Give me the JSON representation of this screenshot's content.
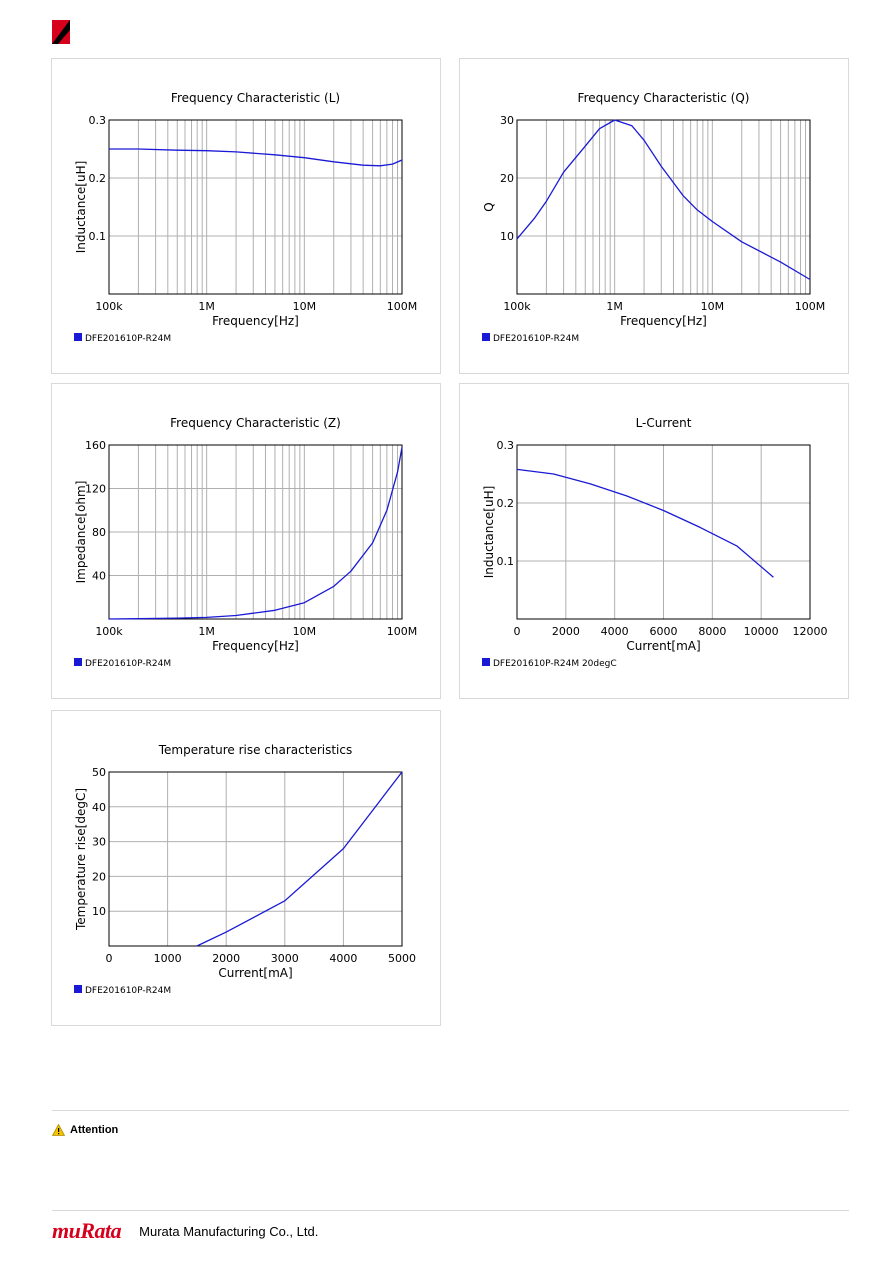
{
  "colors": {
    "line": "#1a1ad6",
    "brand": "#d6001c",
    "grid": "#b0b0b0"
  },
  "chart_data": [
    {
      "id": "chart-l",
      "type": "line",
      "title": "Frequency   Characteristic (L)",
      "xlabel": "Frequency[Hz]",
      "ylabel": "Inductance[uH]",
      "xscale": "log",
      "xlim": [
        100000,
        100000000
      ],
      "ylim": [
        0,
        0.3
      ],
      "xticks": [
        {
          "v": 100000,
          "label": "100k"
        },
        {
          "v": 1000000,
          "label": "1M"
        },
        {
          "v": 10000000,
          "label": "10M"
        },
        {
          "v": 100000000,
          "label": "100M"
        }
      ],
      "yticks": [
        {
          "v": 0.1,
          "label": "0.1"
        },
        {
          "v": 0.2,
          "label": "0.2"
        },
        {
          "v": 0.3,
          "label": "0.3"
        }
      ],
      "legend": "DFE201610P-R24M",
      "series": [
        {
          "name": "DFE201610P-R24M",
          "x": [
            100000,
            200000,
            500000,
            1000000,
            2000000,
            5000000,
            10000000,
            20000000,
            40000000,
            60000000,
            80000000,
            100000000
          ],
          "y": [
            0.25,
            0.25,
            0.248,
            0.247,
            0.245,
            0.24,
            0.235,
            0.228,
            0.222,
            0.221,
            0.224,
            0.231
          ]
        }
      ]
    },
    {
      "id": "chart-q",
      "type": "line",
      "title": "Frequency   Characteristic (Q)",
      "xlabel": "Frequency[Hz]",
      "ylabel": "Q",
      "xscale": "log",
      "xlim": [
        100000,
        100000000
      ],
      "ylim": [
        0,
        30
      ],
      "xticks": [
        {
          "v": 100000,
          "label": "100k"
        },
        {
          "v": 1000000,
          "label": "1M"
        },
        {
          "v": 10000000,
          "label": "10M"
        },
        {
          "v": 100000000,
          "label": "100M"
        }
      ],
      "yticks": [
        {
          "v": 10,
          "label": "10"
        },
        {
          "v": 20,
          "label": "20"
        },
        {
          "v": 30,
          "label": "30"
        }
      ],
      "legend": "DFE201610P-R24M",
      "series": [
        {
          "name": "DFE201610P-R24M",
          "x": [
            100000,
            150000,
            200000,
            300000,
            500000,
            700000,
            1000000,
            1500000,
            2000000,
            3000000,
            5000000,
            7000000,
            10000000,
            20000000,
            50000000,
            100000000
          ],
          "y": [
            9.5,
            13,
            16,
            21,
            25.5,
            28.5,
            30,
            29,
            26.5,
            22,
            17,
            14.5,
            12.5,
            9,
            5.5,
            2.5
          ]
        }
      ]
    },
    {
      "id": "chart-z",
      "type": "line",
      "title": "Frequency   Characteristic (Z)",
      "xlabel": "Frequency[Hz]",
      "ylabel": "Impedance[ohm]",
      "xscale": "log",
      "xlim": [
        100000,
        100000000
      ],
      "ylim": [
        0,
        160
      ],
      "xticks": [
        {
          "v": 100000,
          "label": "100k"
        },
        {
          "v": 1000000,
          "label": "1M"
        },
        {
          "v": 10000000,
          "label": "10M"
        },
        {
          "v": 100000000,
          "label": "100M"
        }
      ],
      "yticks": [
        {
          "v": 40,
          "label": "40"
        },
        {
          "v": 80,
          "label": "80"
        },
        {
          "v": 120,
          "label": "120"
        },
        {
          "v": 160,
          "label": "160"
        }
      ],
      "legend": "DFE201610P-R24M",
      "series": [
        {
          "name": "DFE201610P-R24M",
          "x": [
            100000,
            200000,
            500000,
            1000000,
            2000000,
            5000000,
            10000000,
            20000000,
            30000000,
            50000000,
            70000000,
            90000000,
            100000000
          ],
          "y": [
            0,
            0.3,
            0.8,
            1.5,
            3.2,
            8,
            15,
            30,
            44,
            70,
            100,
            135,
            158
          ]
        }
      ]
    },
    {
      "id": "chart-lc",
      "type": "line",
      "title": "L-Current",
      "xlabel": "Current[mA]",
      "ylabel": "Inductance[uH]",
      "xscale": "linear",
      "xlim": [
        0,
        12000
      ],
      "ylim": [
        0,
        0.3
      ],
      "xticks": [
        {
          "v": 0,
          "label": "0"
        },
        {
          "v": 2000,
          "label": "2000"
        },
        {
          "v": 4000,
          "label": "4000"
        },
        {
          "v": 6000,
          "label": "6000"
        },
        {
          "v": 8000,
          "label": "8000"
        },
        {
          "v": 10000,
          "label": "10000"
        },
        {
          "v": 12000,
          "label": "12000"
        }
      ],
      "yticks": [
        {
          "v": 0.1,
          "label": "0.1"
        },
        {
          "v": 0.2,
          "label": "0.2"
        },
        {
          "v": 0.3,
          "label": "0.3"
        }
      ],
      "legend": "DFE201610P-R24M 20degC",
      "series": [
        {
          "name": "DFE201610P-R24M 20degC",
          "x": [
            0,
            1500,
            3000,
            4500,
            6000,
            7500,
            9000,
            10500
          ],
          "y": [
            0.258,
            0.25,
            0.233,
            0.212,
            0.187,
            0.158,
            0.126,
            0.072
          ]
        }
      ]
    },
    {
      "id": "chart-t",
      "type": "line",
      "title": "Temperature rise characteristics",
      "xlabel": "Current[mA]",
      "ylabel": "Temperature rise[degC]",
      "xscale": "linear",
      "xlim": [
        0,
        5000
      ],
      "ylim": [
        0,
        50
      ],
      "xticks": [
        {
          "v": 0,
          "label": "0"
        },
        {
          "v": 1000,
          "label": "1000"
        },
        {
          "v": 2000,
          "label": "2000"
        },
        {
          "v": 3000,
          "label": "3000"
        },
        {
          "v": 4000,
          "label": "4000"
        },
        {
          "v": 5000,
          "label": "5000"
        }
      ],
      "yticks": [
        {
          "v": 10,
          "label": "10"
        },
        {
          "v": 20,
          "label": "20"
        },
        {
          "v": 30,
          "label": "30"
        },
        {
          "v": 40,
          "label": "40"
        },
        {
          "v": 50,
          "label": "50"
        }
      ],
      "legend": "DFE201610P-R24M",
      "series": [
        {
          "name": "DFE201610P-R24M",
          "x": [
            1500,
            2000,
            3000,
            4000,
            5000
          ],
          "y": [
            0,
            4,
            13,
            28,
            50
          ]
        }
      ]
    }
  ],
  "attention": {
    "label": "Attention"
  },
  "footer": {
    "logo": "muRata",
    "company": "Murata Manufacturing Co., Ltd."
  }
}
